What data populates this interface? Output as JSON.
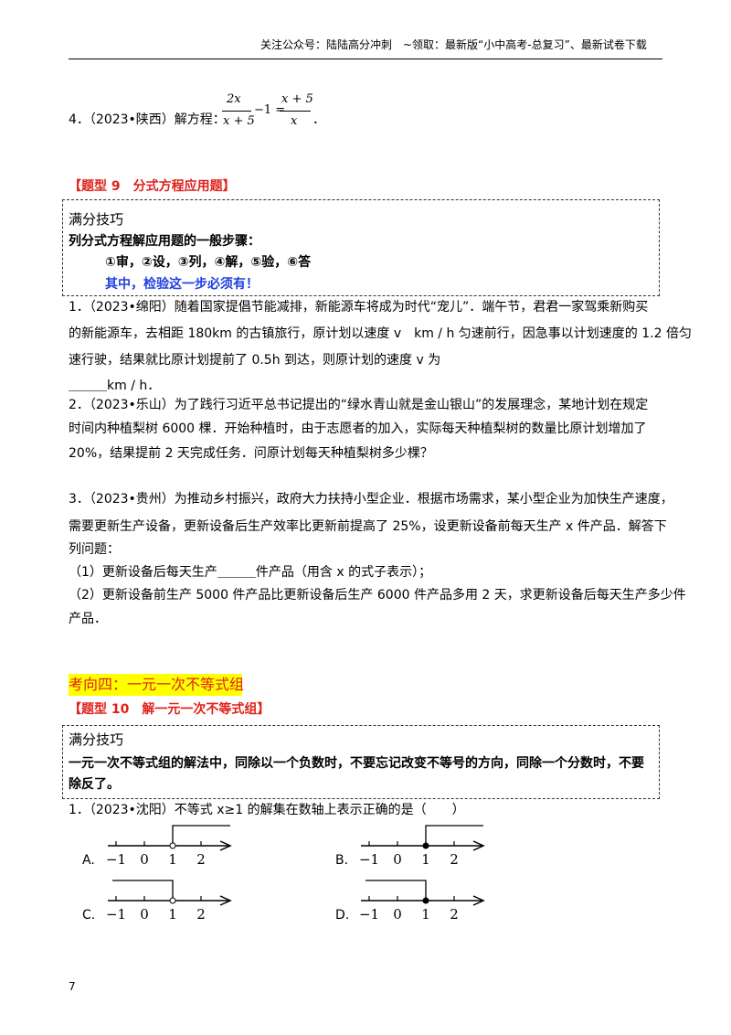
{
  "header": {
    "text": "关注公众号：陆陆高分冲刺　~领取：最新版“小中高考-总复习”、最新试卷下载"
  },
  "problem_4": {
    "prefix": "4．（2023•陕西）解方程：",
    "lhs_num": "2x",
    "lhs_den": "x + 5",
    "middle": "−1 =",
    "rhs_num": "x + 5",
    "rhs_den": "x",
    "end": "．"
  },
  "section_9": {
    "title": "【题型 9　分式方程应用题】"
  },
  "tip_9": {
    "heading": "满分技巧",
    "lines": [
      "列分式方程解应用题的一般步骤：",
      "①审，②设，③列，④解，⑤验，⑥答",
      "其中，检验这一步必须有！"
    ]
  },
  "problems_9": [
    {
      "lines": [
        "1．（2023•绵阳）随着国家提倡节能减排，新能源车将成为时代“宠儿”．端午节，君君一家驾乘新购买",
        "的新能源车，去相距 180km 的古镇旅行，原计划以速度 v　km / h 匀速前行，因急事以计划速度的 1.2 倍匀",
        "速行驶，结果就比原计划提前了 0.5h 到达，则原计划的速度 v 为",
        "＿＿＿km / h．"
      ]
    },
    {
      "lines": [
        "2．（2023•乐山）为了践行习近平总书记提出的“绿水青山就是金山银山”的发展理念，某地计划在规定",
        "时间内种植梨树 6000 棵．开始种植时，由于志愿者的加入，实际每天种植梨树的数量比原计划增加了",
        "20%，结果提前 2 天完成任务．问原计划每天种植梨树多少棵？"
      ]
    },
    {
      "lines": [
        "3．（2023•贵州）为推动乡村振兴，政府大力扶持小型企业．根据市场需求，某小型企业为加快生产速度，",
        "需要更新生产设备，更新设备后生产效率比更新前提高了 25%，设更新设备前每天生产 x 件产品．解答下",
        "列问题：",
        "（1）更新设备后每天生产＿＿＿件产品（用含 x 的式子表示）；",
        "（2）更新设备前生产 5000 件产品比更新设备后生产 6000 件产品多用 2 天，求更新设备后每天生产多少件",
        "产品．"
      ]
    }
  ],
  "direction_4": "考向四：一元一次不等式组",
  "section_10": {
    "title": "【题型 10　解一元一次不等式组】"
  },
  "tip_10": {
    "heading": "满分技巧",
    "lines": [
      "一元一次不等式组的解法中，同除以一个负数时，不要忘记改变不等号的方向，同除一个分数时，不要",
      "除反了。"
    ]
  },
  "problem_10": {
    "stem": "1．（2023•沈阳）不等式 x≥1 的解集在数轴上表示正确的是（　　）",
    "axis_labels": [
      "−1",
      "0",
      "1",
      "2"
    ],
    "options": [
      {
        "label": "A.",
        "direction": "right",
        "endpoint": "open"
      },
      {
        "label": "B.",
        "direction": "right",
        "endpoint": "closed"
      },
      {
        "label": "C.",
        "direction": "left",
        "endpoint": "open"
      },
      {
        "label": "D.",
        "direction": "left",
        "endpoint": "closed"
      }
    ]
  },
  "page_number": "7"
}
